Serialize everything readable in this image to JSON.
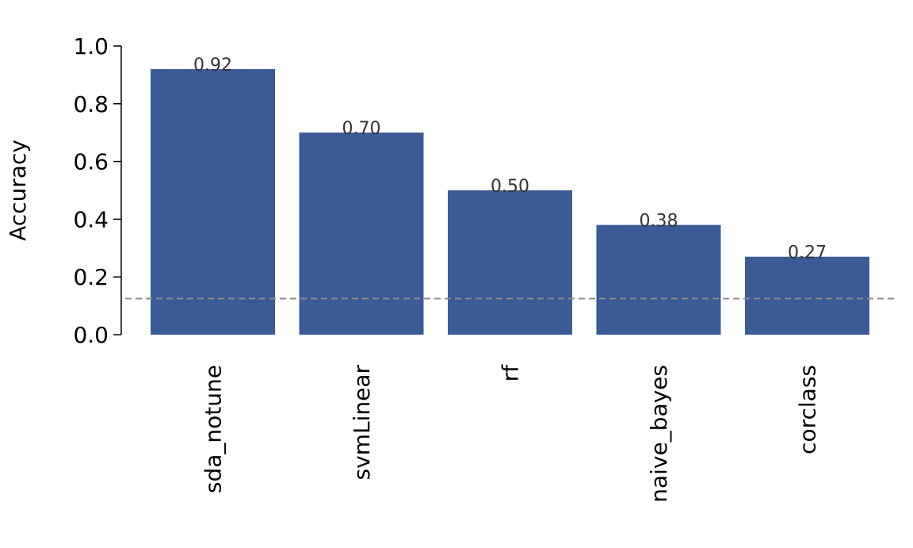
{
  "chart_data": {
    "type": "bar",
    "title": "",
    "xlabel": "",
    "ylabel": "Accuracy",
    "categories": [
      "sda_notune",
      "svmLinear",
      "rf",
      "naive_bayes",
      "corclass"
    ],
    "values": [
      0.92,
      0.7,
      0.5,
      0.38,
      0.27
    ],
    "value_labels": [
      "0.92",
      "0.70",
      "0.50",
      "0.38",
      "0.27"
    ],
    "ylim": [
      0,
      1.0
    ],
    "yticks": [
      0.0,
      0.2,
      0.4,
      0.6,
      0.8,
      1.0
    ],
    "ytick_labels": [
      "0.0",
      "0.2",
      "0.4",
      "0.6",
      "0.8",
      "1.0"
    ],
    "reference_line": {
      "y": 0.125,
      "style": "dashed",
      "color": "#8c8c8c"
    },
    "grid": false,
    "legend": "none",
    "colors": {
      "bar": "#3b5b96",
      "axis": "#000000",
      "data_label": "#333333"
    }
  }
}
